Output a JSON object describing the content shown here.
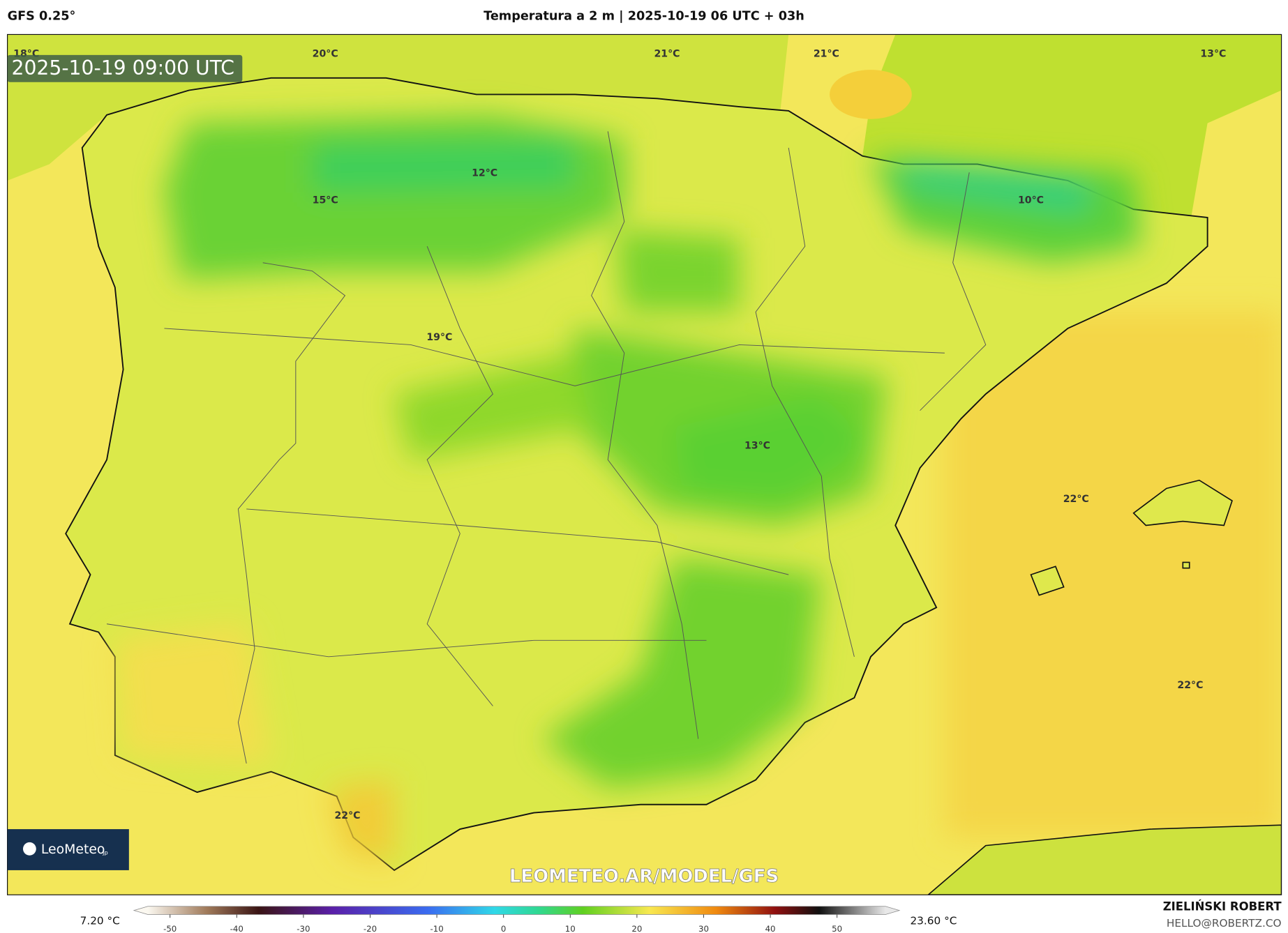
{
  "header": {
    "model": "GFS 0.25°",
    "title": "Temperatura a 2 m | 2025-10-19 06 UTC + 03h"
  },
  "map": {
    "timestamp": "2025-10-19 09:00 UTC",
    "labels": [
      "18°C",
      "20°C",
      "21°C",
      "21°C",
      "13°C",
      "12°C",
      "15°C",
      "10°C",
      "19°C",
      "13°C",
      "22°C",
      "22°C",
      "22°C"
    ],
    "watermark": "LEOMETEO.AR/MODEL/GFS",
    "logo": "LeoMeteo",
    "logo_suffix": "jp"
  },
  "legend": {
    "min_label": "7.20 °C",
    "max_label": "23.60 °C",
    "ticks": [
      -50,
      -40,
      -30,
      -20,
      -10,
      0,
      10,
      20,
      30,
      40,
      50
    ]
  },
  "footer": {
    "author": "ZIELIŃSKI ROBERT",
    "email": "HELLO@ROBERTZ.CO"
  }
}
